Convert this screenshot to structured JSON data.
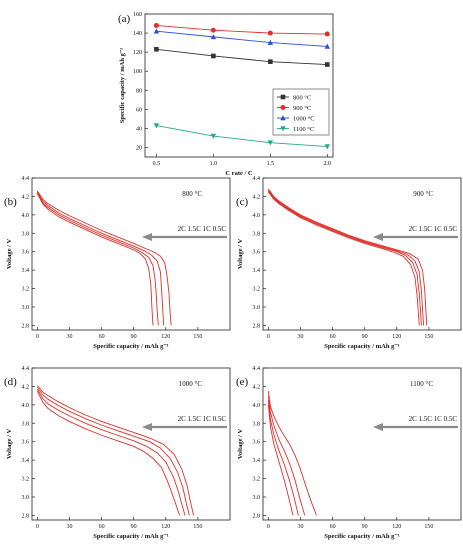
{
  "chart_data": [
    {
      "panel": "(a)",
      "type": "line",
      "xlabel": "C rate / C",
      "ylabel": "Specific capacity / mAh g⁻¹",
      "xlim": [
        0.4,
        2.05
      ],
      "ylim": [
        10,
        160
      ],
      "xticks": [
        "0.5",
        "1.0",
        "1.5",
        "2.0"
      ],
      "yticks": [
        "20",
        "40",
        "60",
        "80",
        "100",
        "120",
        "140",
        "160"
      ],
      "x": [
        0.5,
        1.0,
        1.5,
        2.0
      ],
      "legend_position": "center-right",
      "series": [
        {
          "name": "800 °C",
          "color": "#333333",
          "marker": "square",
          "values": [
            123,
            116,
            110,
            107
          ]
        },
        {
          "name": "900 °C",
          "color": "#e0302a",
          "marker": "circle",
          "values": [
            148,
            143,
            140,
            139
          ]
        },
        {
          "name": "1000 °C",
          "color": "#2a50d8",
          "marker": "triangle-up",
          "values": [
            142,
            136,
            130,
            126
          ]
        },
        {
          "name": "1100 °C",
          "color": "#2aa88a",
          "marker": "triangle-down",
          "values": [
            43,
            32,
            25,
            21
          ]
        }
      ]
    },
    {
      "panel": "(b)",
      "type": "line",
      "annotation": "800 °C",
      "rate_label": "2C 1.5C 1C 0.5C",
      "xlabel": "Specific capacity / mAh g⁻¹",
      "ylabel": "Voltage / V",
      "xlim": [
        -5,
        180
      ],
      "ylim": [
        2.75,
        4.4
      ],
      "xticks": [
        "0",
        "30",
        "60",
        "90",
        "120",
        "150"
      ],
      "yticks": [
        "2.8",
        "3.0",
        "3.2",
        "3.4",
        "3.6",
        "3.8",
        "4.0",
        "4.2",
        "4.4"
      ],
      "series": [
        {
          "rate": "0.5C",
          "color": "#e0302a",
          "x": [
            0,
            5,
            10,
            20,
            30,
            45,
            60,
            75,
            90,
            100,
            110,
            115,
            119,
            121,
            123,
            124,
            125
          ],
          "y": [
            4.26,
            4.17,
            4.12,
            4.05,
            3.99,
            3.91,
            3.83,
            3.76,
            3.69,
            3.64,
            3.59,
            3.55,
            3.48,
            3.35,
            3.15,
            2.95,
            2.8
          ]
        },
        {
          "rate": "1C",
          "color": "#e0302a",
          "x": [
            0,
            5,
            10,
            20,
            30,
            45,
            60,
            75,
            90,
            100,
            107,
            112,
            115,
            116,
            117,
            118
          ],
          "y": [
            4.25,
            4.15,
            4.1,
            4.02,
            3.96,
            3.88,
            3.8,
            3.73,
            3.66,
            3.61,
            3.56,
            3.5,
            3.38,
            3.2,
            3.0,
            2.8
          ]
        },
        {
          "rate": "1.5C",
          "color": "#e0302a",
          "x": [
            0,
            5,
            10,
            20,
            30,
            45,
            60,
            75,
            90,
            98,
            104,
            108,
            110,
            111,
            112,
            113
          ],
          "y": [
            4.24,
            4.13,
            4.08,
            4.0,
            3.94,
            3.86,
            3.78,
            3.71,
            3.64,
            3.59,
            3.54,
            3.45,
            3.3,
            3.15,
            2.95,
            2.8
          ]
        },
        {
          "rate": "2C",
          "color": "#e0302a",
          "x": [
            0,
            5,
            10,
            20,
            30,
            45,
            60,
            75,
            90,
            96,
            101,
            104,
            106,
            107,
            108
          ],
          "y": [
            4.23,
            4.12,
            4.06,
            3.98,
            3.92,
            3.84,
            3.76,
            3.69,
            3.62,
            3.58,
            3.52,
            3.42,
            3.25,
            3.0,
            2.8
          ]
        }
      ]
    },
    {
      "panel": "(c)",
      "type": "line",
      "annotation": "900 °C",
      "rate_label": "2C 1.5C 1C 0.5C",
      "xlabel": "Specific capacity / mAh g⁻¹",
      "ylabel": "Voltage / V",
      "xlim": [
        -5,
        180
      ],
      "ylim": [
        2.75,
        4.4
      ],
      "xticks": [
        "0",
        "30",
        "60",
        "90",
        "120",
        "150"
      ],
      "yticks": [
        "2.8",
        "3.0",
        "3.2",
        "3.4",
        "3.6",
        "3.8",
        "4.0",
        "4.2",
        "4.4"
      ],
      "series": [
        {
          "rate": "0.5C",
          "color": "#e0302a",
          "x": [
            0,
            5,
            10,
            20,
            30,
            45,
            60,
            75,
            90,
            105,
            120,
            132,
            140,
            144,
            146,
            147,
            148
          ],
          "y": [
            4.28,
            4.2,
            4.15,
            4.07,
            4.0,
            3.92,
            3.85,
            3.78,
            3.72,
            3.67,
            3.62,
            3.58,
            3.52,
            3.4,
            3.2,
            3.0,
            2.8
          ]
        },
        {
          "rate": "1C",
          "color": "#e0302a",
          "x": [
            0,
            5,
            10,
            20,
            30,
            45,
            60,
            75,
            90,
            105,
            120,
            130,
            137,
            141,
            143,
            144,
            145
          ],
          "y": [
            4.27,
            4.19,
            4.14,
            4.06,
            3.99,
            3.91,
            3.84,
            3.77,
            3.71,
            3.66,
            3.61,
            3.57,
            3.5,
            3.38,
            3.18,
            2.98,
            2.8
          ]
        },
        {
          "rate": "1.5C",
          "color": "#e0302a",
          "x": [
            0,
            5,
            10,
            20,
            30,
            45,
            60,
            75,
            90,
            105,
            120,
            128,
            135,
            139,
            141,
            142,
            143
          ],
          "y": [
            4.26,
            4.18,
            4.13,
            4.05,
            3.98,
            3.9,
            3.83,
            3.76,
            3.7,
            3.65,
            3.6,
            3.56,
            3.48,
            3.35,
            3.15,
            2.98,
            2.8
          ]
        },
        {
          "rate": "2C",
          "color": "#e0302a",
          "x": [
            0,
            5,
            10,
            20,
            30,
            45,
            60,
            75,
            90,
            105,
            118,
            126,
            133,
            137,
            139,
            140,
            141
          ],
          "y": [
            4.25,
            4.17,
            4.12,
            4.04,
            3.97,
            3.89,
            3.82,
            3.75,
            3.69,
            3.64,
            3.59,
            3.55,
            3.46,
            3.32,
            3.12,
            2.96,
            2.8
          ]
        }
      ]
    },
    {
      "panel": "(d)",
      "type": "line",
      "annotation": "1000 °C",
      "rate_label": "2C 1.5C 1C 0.5C",
      "xlabel": "Specific capacity / mAh g⁻¹",
      "ylabel": "Voltage / V",
      "xlim": [
        -5,
        180
      ],
      "ylim": [
        2.75,
        4.4
      ],
      "xticks": [
        "0",
        "30",
        "60",
        "90",
        "120",
        "150"
      ],
      "yticks": [
        "2.8",
        "3.0",
        "3.2",
        "3.4",
        "3.6",
        "3.8",
        "4.0",
        "4.2",
        "4.4"
      ],
      "series": [
        {
          "rate": "0.5C",
          "color": "#e0302a",
          "x": [
            0,
            5,
            10,
            20,
            30,
            45,
            60,
            75,
            90,
            105,
            118,
            128,
            135,
            140,
            143,
            145,
            146
          ],
          "y": [
            4.21,
            4.14,
            4.1,
            4.03,
            3.97,
            3.89,
            3.82,
            3.76,
            3.7,
            3.64,
            3.57,
            3.46,
            3.3,
            3.12,
            2.95,
            2.85,
            2.8
          ]
        },
        {
          "rate": "1C",
          "color": "#e0302a",
          "x": [
            0,
            5,
            10,
            20,
            30,
            45,
            60,
            75,
            90,
            105,
            115,
            124,
            131,
            136,
            139,
            141,
            142
          ],
          "y": [
            4.19,
            4.11,
            4.06,
            3.99,
            3.93,
            3.85,
            3.78,
            3.72,
            3.66,
            3.6,
            3.53,
            3.42,
            3.27,
            3.1,
            2.94,
            2.85,
            2.8
          ]
        },
        {
          "rate": "1.5C",
          "color": "#e0302a",
          "x": [
            0,
            5,
            10,
            20,
            30,
            45,
            60,
            75,
            90,
            102,
            112,
            120,
            127,
            132,
            135,
            137,
            138
          ],
          "y": [
            4.17,
            4.07,
            4.01,
            3.94,
            3.88,
            3.8,
            3.73,
            3.67,
            3.61,
            3.55,
            3.48,
            3.38,
            3.22,
            3.05,
            2.92,
            2.84,
            2.8
          ]
        },
        {
          "rate": "2C",
          "color": "#e0302a",
          "x": [
            0,
            5,
            10,
            20,
            30,
            45,
            60,
            75,
            90,
            100,
            108,
            116,
            122,
            127,
            130,
            132,
            133
          ],
          "y": [
            4.15,
            4.03,
            3.96,
            3.88,
            3.82,
            3.74,
            3.67,
            3.61,
            3.55,
            3.49,
            3.42,
            3.32,
            3.16,
            3.0,
            2.9,
            2.83,
            2.8
          ]
        }
      ]
    },
    {
      "panel": "(e)",
      "type": "line",
      "annotation": "1100 °C",
      "rate_label": "2C 1.5C 1C 0.5C",
      "xlabel": "Specific capacity / mAh g⁻¹",
      "ylabel": "Voltage / V",
      "xlim": [
        -5,
        180
      ],
      "ylim": [
        2.75,
        4.4
      ],
      "xticks": [
        "0",
        "30",
        "60",
        "90",
        "120",
        "150"
      ],
      "yticks": [
        "2.8",
        "3.0",
        "3.2",
        "3.4",
        "3.6",
        "3.8",
        "4.0",
        "4.2",
        "4.4"
      ],
      "series": [
        {
          "rate": "0.5C",
          "color": "#e0302a",
          "x": [
            0,
            2,
            5,
            10,
            15,
            20,
            25,
            30,
            35,
            40,
            43,
            45
          ],
          "y": [
            4.15,
            3.98,
            3.88,
            3.76,
            3.66,
            3.57,
            3.45,
            3.3,
            3.12,
            2.95,
            2.86,
            2.8
          ]
        },
        {
          "rate": "1C",
          "color": "#e0302a",
          "x": [
            0,
            2,
            5,
            10,
            15,
            20,
            25,
            29,
            32,
            34
          ],
          "y": [
            4.1,
            3.92,
            3.78,
            3.62,
            3.5,
            3.36,
            3.18,
            3.0,
            2.88,
            2.8
          ]
        },
        {
          "rate": "1.5C",
          "color": "#e0302a",
          "x": [
            0,
            2,
            5,
            10,
            15,
            20,
            24,
            26,
            28
          ],
          "y": [
            4.05,
            3.84,
            3.68,
            3.5,
            3.35,
            3.17,
            3.0,
            2.9,
            2.8
          ]
        },
        {
          "rate": "2C",
          "color": "#e0302a",
          "x": [
            0,
            2,
            5,
            10,
            14,
            18,
            21,
            23
          ],
          "y": [
            4.0,
            3.76,
            3.58,
            3.38,
            3.22,
            3.04,
            2.9,
            2.8
          ]
        }
      ]
    }
  ]
}
